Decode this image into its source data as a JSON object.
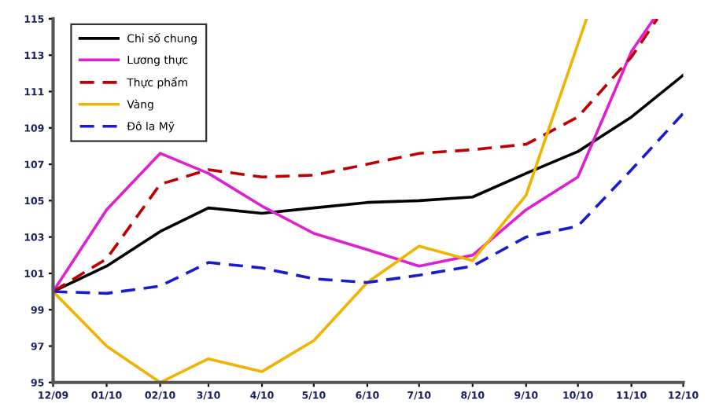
{
  "chart_data": {
    "type": "line",
    "xlim": [
      "2009-12",
      "2010-12"
    ],
    "ylim": [
      95,
      115
    ],
    "xticks": [
      {
        "value": "2009-12",
        "label": "12/09"
      },
      {
        "value": "2010-01",
        "label": "01/10"
      },
      {
        "value": "2010-02",
        "label": "02/10"
      },
      {
        "value": "2010-03",
        "label": "3/10"
      },
      {
        "value": "2010-04",
        "label": "4/10"
      },
      {
        "value": "2010-05",
        "label": "5/10"
      },
      {
        "value": "2010-06",
        "label": "6/10"
      },
      {
        "value": "2010-07",
        "label": "7/10"
      },
      {
        "value": "2010-08",
        "label": "8/10"
      },
      {
        "value": "2010-09",
        "label": "9/10"
      },
      {
        "value": "2010-10",
        "label": "10/10"
      },
      {
        "value": "2010-11",
        "label": "11/10"
      },
      {
        "value": "2010-12",
        "label": "12/10"
      }
    ],
    "yticks": [
      95,
      97,
      99,
      101,
      103,
      105,
      107,
      109,
      111,
      113,
      115
    ],
    "grid": false,
    "legend": "top left",
    "series": [
      {
        "name": "Chỉ số chung",
        "color": "#000000",
        "line_style": "solid",
        "x": [
          "2009-12",
          "2010-01",
          "2010-02",
          "2010-03",
          "2010-04",
          "2010-05",
          "2010-06",
          "2010-07",
          "2010-08",
          "2010-09",
          "2010-10",
          "2010-11",
          "2010-12"
        ],
        "values": [
          100,
          101.4,
          103.3,
          104.6,
          104.3,
          104.6,
          104.9,
          105.0,
          105.2,
          106.5,
          107.7,
          109.6,
          111.9
        ]
      },
      {
        "name": "Lương thực",
        "color": "#e020d0",
        "line_style": "solid",
        "x": [
          "2009-12",
          "2010-01",
          "2010-02",
          "2010-03",
          "2010-04",
          "2010-05",
          "2010-06",
          "2010-07",
          "2010-08",
          "2010-09",
          "2010-10",
          "2010-11",
          "2010-11-14"
        ],
        "values": [
          100,
          104.5,
          107.6,
          106.5,
          104.7,
          103.2,
          102.3,
          101.4,
          102.0,
          104.5,
          106.3,
          113.2,
          115
        ]
      },
      {
        "name": "Thực phẩm",
        "color": "#c00000",
        "line_style": "dashed",
        "x": [
          "2009-12",
          "2010-01",
          "2010-02",
          "2010-03",
          "2010-04",
          "2010-05",
          "2010-06",
          "2010-07",
          "2010-08",
          "2010-09",
          "2010-10",
          "2010-11",
          "2010-11-16"
        ],
        "values": [
          100,
          101.8,
          105.9,
          106.7,
          106.3,
          106.4,
          107.0,
          107.6,
          107.8,
          108.1,
          109.6,
          112.9,
          115
        ]
      },
      {
        "name": "Vàng",
        "color": "#f0b400",
        "line_style": "solid",
        "x": [
          "2009-12",
          "2010-01",
          "2010-02",
          "2010-03",
          "2010-04",
          "2010-05",
          "2010-06",
          "2010-07",
          "2010-08",
          "2010-09",
          "2010-10-06"
        ],
        "values": [
          100,
          97.0,
          95,
          96.3,
          95.6,
          97.3,
          100.5,
          102.5,
          101.7,
          105.3,
          115
        ]
      },
      {
        "name": "Đô la Mỹ",
        "color": "#1a1ad0",
        "line_style": "dashed",
        "x": [
          "2009-12",
          "2010-01",
          "2010-02",
          "2010-03",
          "2010-04",
          "2010-05",
          "2010-06",
          "2010-07",
          "2010-08",
          "2010-09",
          "2010-10",
          "2010-11",
          "2010-12"
        ],
        "values": [
          100,
          99.9,
          100.3,
          101.6,
          101.3,
          100.7,
          100.5,
          100.9,
          101.4,
          103.0,
          103.6,
          106.7,
          109.8
        ]
      }
    ]
  }
}
